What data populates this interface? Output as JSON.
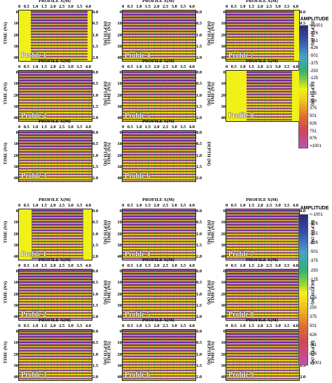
{
  "axis": {
    "profile_title": "PROFILE X(M)",
    "x_ticks": [
      "0",
      "0.5",
      "1.0",
      "1.5",
      "2.0",
      "2.5",
      "3.0",
      "3.5",
      "4.0"
    ],
    "time_title": "TIME (NS)",
    "time_ticks": [
      "0",
      "10",
      "20",
      "30",
      "40"
    ],
    "depth_title": "DEPTH (M)",
    "depth_ticks": [
      "0.0",
      "0.5",
      "1.0",
      "1.5",
      "2.0"
    ]
  },
  "legend": {
    "title": "AMPLITUDE",
    "values": [
      "<-1001",
      "-876",
      "-751",
      "-626",
      "-501",
      "-375",
      "-250",
      "-125",
      "0",
      "125",
      "250",
      "375",
      "501",
      "626",
      "751",
      "876",
      ">1001"
    ]
  },
  "top_group": {
    "panels": [
      "Profile 1",
      "Profile 4",
      "Profile 7",
      "Profile 2",
      "Profile 5",
      "Profile 8",
      "Profile 3",
      "Profile 6"
    ]
  },
  "bottom_group": {
    "panels": [
      "Profile 1",
      "Profile 4",
      "Profile 7",
      "Profile 2",
      "Profile 5",
      "Profile 8",
      "Profile 3",
      "Profile 6",
      "Profile 9"
    ]
  }
}
